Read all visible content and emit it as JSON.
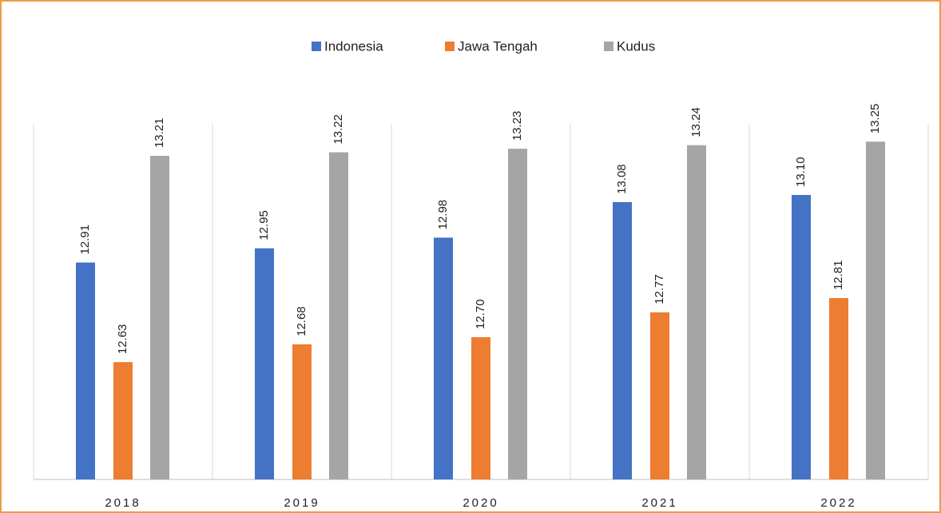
{
  "chart_data": {
    "type": "bar",
    "categories": [
      "2018",
      "2019",
      "2020",
      "2021",
      "2022"
    ],
    "series": [
      {
        "name": "Indonesia",
        "color": "#4472c4",
        "values": [
          12.91,
          12.95,
          12.98,
          13.08,
          13.1
        ],
        "value_labels": [
          "12.91",
          "12.95",
          "12.98",
          "13.08",
          "13.10"
        ]
      },
      {
        "name": "Jawa Tengah",
        "color": "#ed7d31",
        "values": [
          12.63,
          12.68,
          12.7,
          12.77,
          12.81
        ],
        "value_labels": [
          "12.63",
          "12.68",
          "12.70",
          "12.77",
          "12.81"
        ]
      },
      {
        "name": "Kudus",
        "color": "#a5a5a5",
        "values": [
          13.21,
          13.22,
          13.23,
          13.24,
          13.25
        ]
      }
    ],
    "ylim": [
      12.3,
      13.3
    ],
    "legend": "top"
  }
}
